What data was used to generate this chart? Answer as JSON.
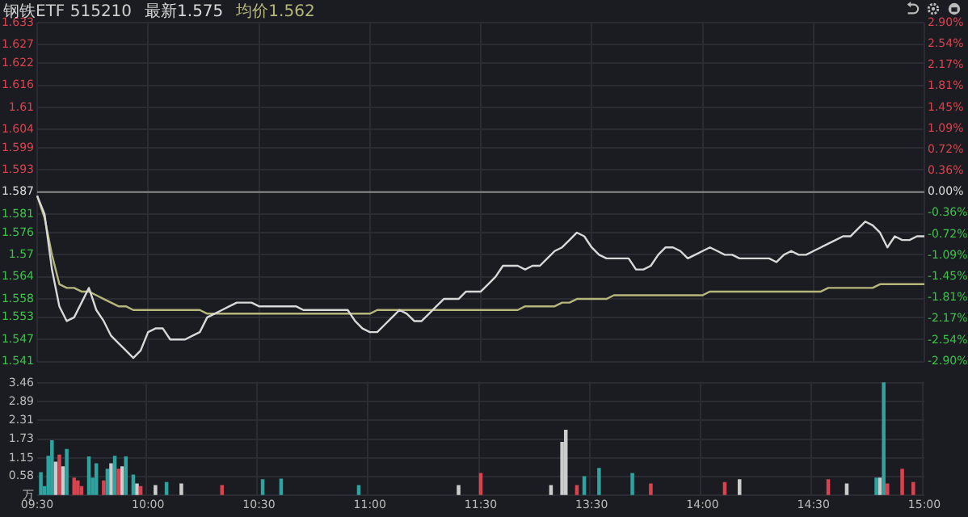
{
  "chart_data": [
    {
      "type": "line",
      "title": "钢铁ETF 515210",
      "legend": "top left",
      "grid": true,
      "tick_labels": "y",
      "categories": [
        null,
        null,
        null,
        null,
        null,
        null,
        null,
        null,
        null,
        null,
        null,
        null,
        null,
        null,
        null,
        null,
        null,
        null,
        null,
        null,
        null,
        null,
        null,
        null,
        null,
        null,
        null,
        null,
        null,
        null,
        null,
        null,
        null,
        null,
        null,
        null,
        null,
        null,
        null,
        null,
        null,
        null,
        null,
        null,
        null,
        null,
        null,
        null,
        null,
        null,
        null,
        null,
        null,
        null,
        null,
        null,
        null,
        null,
        null,
        null,
        null,
        null,
        null,
        null,
        null,
        null,
        null,
        null,
        null,
        null,
        null,
        null,
        null,
        null,
        null,
        null,
        null,
        null,
        null,
        null,
        null,
        null,
        null,
        null,
        null,
        null,
        null,
        null,
        null,
        null,
        null,
        null,
        null,
        null,
        null,
        null,
        null,
        null,
        null,
        null,
        null,
        null,
        null,
        null,
        null,
        null,
        null,
        null,
        null,
        null,
        null,
        null,
        null,
        null,
        null,
        null,
        null,
        null,
        null,
        null,
        null
      ],
      "series": [
        {
          "name": "最新1.575",
          "color": "#d8d8d8",
          "values": [
            1.586,
            1.581,
            1.566,
            1.556,
            1.552,
            1.553,
            1.557,
            1.561,
            1.555,
            1.552,
            1.548,
            1.546,
            1.544,
            1.542,
            1.544,
            1.549,
            1.55,
            1.55,
            1.547,
            1.547,
            1.547,
            1.548,
            1.549,
            1.553,
            1.554,
            1.555,
            1.556,
            1.557,
            1.557,
            1.557,
            1.556,
            1.556,
            1.556,
            1.556,
            1.556,
            1.556,
            1.555,
            1.555,
            1.555,
            1.555,
            1.555,
            1.555,
            1.555,
            1.552,
            1.55,
            1.549,
            1.549,
            1.551,
            1.553,
            1.555,
            1.554,
            1.552,
            1.552,
            1.554,
            1.556,
            1.558,
            1.558,
            1.558,
            1.56,
            1.56,
            1.56,
            1.562,
            1.564,
            1.567,
            1.567,
            1.567,
            1.566,
            1.567,
            1.567,
            1.569,
            1.571,
            1.572,
            1.574,
            1.576,
            1.575,
            1.572,
            1.57,
            1.569,
            1.569,
            1.569,
            1.569,
            1.566,
            1.566,
            1.567,
            1.57,
            1.572,
            1.572,
            1.571,
            1.569,
            1.57,
            1.571,
            1.572,
            1.571,
            1.57,
            1.57,
            1.569,
            1.569,
            1.569,
            1.569,
            1.569,
            1.568,
            1.57,
            1.571,
            1.57,
            1.57,
            1.571,
            1.572,
            1.573,
            1.574,
            1.575,
            1.575,
            1.577,
            1.579,
            1.578,
            1.576,
            1.572,
            1.575,
            1.574,
            1.574,
            1.575,
            1.575
          ]
        },
        {
          "name": "均价1.562",
          "color": "#b5b67a",
          "values": [
            1.586,
            1.58,
            1.57,
            1.562,
            1.561,
            1.561,
            1.56,
            1.56,
            1.559,
            1.558,
            1.557,
            1.556,
            1.556,
            1.555,
            1.555,
            1.555,
            1.555,
            1.555,
            1.555,
            1.555,
            1.555,
            1.555,
            1.555,
            1.554,
            1.554,
            1.554,
            1.554,
            1.554,
            1.554,
            1.554,
            1.554,
            1.554,
            1.554,
            1.554,
            1.554,
            1.554,
            1.554,
            1.554,
            1.554,
            1.554,
            1.554,
            1.554,
            1.554,
            1.554,
            1.554,
            1.554,
            1.555,
            1.555,
            1.555,
            1.555,
            1.555,
            1.555,
            1.555,
            1.555,
            1.555,
            1.555,
            1.555,
            1.555,
            1.555,
            1.555,
            1.555,
            1.555,
            1.555,
            1.555,
            1.555,
            1.555,
            1.556,
            1.556,
            1.556,
            1.556,
            1.556,
            1.557,
            1.557,
            1.558,
            1.558,
            1.558,
            1.558,
            1.558,
            1.559,
            1.559,
            1.559,
            1.559,
            1.559,
            1.559,
            1.559,
            1.559,
            1.559,
            1.559,
            1.559,
            1.559,
            1.559,
            1.56,
            1.56,
            1.56,
            1.56,
            1.56,
            1.56,
            1.56,
            1.56,
            1.56,
            1.56,
            1.56,
            1.56,
            1.56,
            1.56,
            1.56,
            1.56,
            1.561,
            1.561,
            1.561,
            1.561,
            1.561,
            1.561,
            1.561,
            1.562,
            1.562,
            1.562,
            1.562,
            1.562,
            1.562,
            1.562
          ]
        }
      ],
      "ylim": [
        1.541,
        1.633
      ],
      "yticks": [
        1.541,
        1.547,
        1.553,
        1.558,
        1.564,
        1.57,
        1.576,
        1.581,
        1.587,
        1.593,
        1.599,
        1.604,
        1.61,
        1.616,
        1.622,
        1.627,
        1.633
      ],
      "y2lim": [
        -2.9,
        2.9
      ],
      "y2ticks": [
        {
          "value": -2.9,
          "label": "-2.90%"
        },
        {
          "value": -2.54,
          "label": "-2.54%"
        },
        {
          "value": -2.17,
          "label": "-2.17%"
        },
        {
          "value": -1.81,
          "label": "-1.81%"
        },
        {
          "value": -1.45,
          "label": "-1.45%"
        },
        {
          "value": -1.09,
          "label": "-1.09%"
        },
        {
          "value": -0.72,
          "label": "-0.72%"
        },
        {
          "value": -0.36,
          "label": "-0.36%"
        },
        {
          "value": 0,
          "label": "0.00%"
        },
        {
          "value": 0.36,
          "label": "0.36%"
        },
        {
          "value": 0.72,
          "label": "0.72%"
        },
        {
          "value": 1.09,
          "label": "1.09%"
        },
        {
          "value": 1.45,
          "label": "1.45%"
        },
        {
          "value": 1.81,
          "label": "1.81%"
        },
        {
          "value": 2.17,
          "label": "2.17%"
        },
        {
          "value": 2.54,
          "label": "2.54%"
        },
        {
          "value": 2.9,
          "label": "2.90%"
        }
      ],
      "ref_lines": [
        {
          "axis": "y",
          "value": 1.587,
          "color": "#8a8a8a"
        }
      ]
    },
    {
      "type": "bar",
      "grid": true,
      "categories": [
        "09:30",
        null,
        null,
        null,
        null,
        null,
        null,
        null,
        null,
        null,
        null,
        null,
        null,
        null,
        null,
        null,
        null,
        null,
        null,
        null,
        null,
        null,
        null,
        null,
        null,
        null,
        null,
        null,
        null,
        null,
        "10:00",
        null,
        null,
        null,
        null,
        null,
        null,
        null,
        null,
        null,
        null,
        null,
        null,
        null,
        null,
        null,
        null,
        null,
        null,
        null,
        null,
        null,
        null,
        null,
        null,
        null,
        null,
        null,
        null,
        null,
        "10:30",
        null,
        null,
        null,
        null,
        null,
        null,
        null,
        null,
        null,
        null,
        null,
        null,
        null,
        null,
        null,
        null,
        null,
        null,
        null,
        null,
        null,
        null,
        null,
        null,
        null,
        null,
        null,
        null,
        null,
        "11:00",
        null,
        null,
        null,
        null,
        null,
        null,
        null,
        null,
        null,
        null,
        null,
        null,
        null,
        null,
        null,
        null,
        null,
        null,
        null,
        null,
        null,
        null,
        null,
        null,
        null,
        null,
        null,
        null,
        null,
        "11:30",
        null,
        null,
        null,
        null,
        null,
        null,
        null,
        null,
        null,
        null,
        null,
        null,
        null,
        null,
        null,
        null,
        null,
        null,
        null,
        null,
        null,
        null,
        null,
        null,
        null,
        null,
        null,
        null,
        null,
        "13:30",
        null,
        null,
        null,
        null,
        null,
        null,
        null,
        null,
        null,
        null,
        null,
        null,
        null,
        null,
        null,
        null,
        null,
        null,
        null,
        null,
        null,
        null,
        null,
        null,
        null,
        null,
        null,
        null,
        null,
        "14:00",
        null,
        null,
        null,
        null,
        null,
        null,
        null,
        null,
        null,
        null,
        null,
        null,
        null,
        null,
        null,
        null,
        null,
        null,
        null,
        null,
        null,
        null,
        null,
        null,
        null,
        null,
        null,
        null,
        null,
        "14:30",
        null,
        null,
        null,
        null,
        null,
        null,
        null,
        null,
        null,
        null,
        null,
        null,
        null,
        null,
        null,
        null,
        null,
        null,
        null,
        null,
        null,
        null,
        null,
        null,
        null,
        null,
        null,
        null,
        null,
        "15:00"
      ],
      "values": [
        null,
        0.7,
        0.27,
        1.2,
        1.68,
        1.02,
        1.24,
        0.88,
        1.41,
        null,
        0.53,
        0.44,
        0.27,
        null,
        1.18,
        0.53,
        0.97,
        null,
        0.44,
        0.8,
        0.97,
        1.2,
        0.8,
        0.88,
        1.18,
        null,
        0.62,
        0.35,
        0.27,
        null,
        null,
        null,
        0.3,
        null,
        null,
        0.39,
        null,
        null,
        null,
        0.35,
        null,
        null,
        null,
        null,
        null,
        null,
        null,
        null,
        null,
        null,
        0.3,
        null,
        null,
        null,
        null,
        null,
        null,
        null,
        null,
        null,
        null,
        0.48,
        null,
        null,
        null,
        null,
        0.5,
        null,
        null,
        null,
        null,
        null,
        null,
        null,
        null,
        null,
        null,
        null,
        null,
        null,
        null,
        null,
        null,
        null,
        null,
        null,
        null,
        0.3,
        null,
        null,
        null,
        null,
        null,
        null,
        null,
        null,
        null,
        null,
        null,
        null,
        null,
        null,
        null,
        null,
        null,
        null,
        null,
        null,
        null,
        null,
        null,
        null,
        null,
        null,
        0.3,
        null,
        null,
        null,
        null,
        null,
        0.67,
        null,
        null,
        null,
        null,
        null,
        null,
        null,
        null,
        null,
        null,
        null,
        null,
        null,
        null,
        null,
        null,
        null,
        null,
        0.3,
        null,
        null,
        1.63,
        2.0,
        null,
        null,
        0.3,
        null,
        0.57,
        null,
        null,
        null,
        0.83,
        null,
        null,
        null,
        null,
        null,
        null,
        null,
        null,
        0.67,
        null,
        null,
        null,
        null,
        0.35,
        null,
        null,
        null,
        null,
        null,
        null,
        null,
        null,
        null,
        null,
        null,
        null,
        null,
        null,
        null,
        null,
        null,
        null,
        null,
        0.39,
        null,
        null,
        null,
        0.48,
        null,
        null,
        null,
        null,
        null,
        null,
        null,
        null,
        null,
        null,
        null,
        null,
        null,
        null,
        null,
        null,
        null,
        null,
        null,
        null,
        null,
        null,
        null,
        0.48,
        null,
        null,
        null,
        null,
        0.35,
        null,
        null,
        null,
        null,
        null,
        null,
        null,
        0.53,
        0.53,
        3.46,
        0.35,
        null,
        null,
        null,
        0.8,
        null,
        null,
        0.39,
        null,
        null,
        null
      ],
      "colors": [
        null,
        "#2fa3a0",
        "#2fa3a0",
        "#2fa3a0",
        "#2fa3a0",
        "#cccccc",
        "#d9434f",
        "#cccccc",
        "#2fa3a0",
        null,
        "#d9434f",
        "#d9434f",
        "#d9434f",
        null,
        "#2fa3a0",
        "#2fa3a0",
        "#2fa3a0",
        null,
        "#d9434f",
        "#2fa3a0",
        "#cccccc",
        "#2fa3a0",
        "#d9434f",
        "#cccccc",
        "#2fa3a0",
        null,
        "#2fa3a0",
        "#cccccc",
        "#d9434f",
        null,
        null,
        null,
        "#cccccc",
        null,
        null,
        "#2fa3a0",
        null,
        null,
        null,
        "#cccccc",
        null,
        null,
        null,
        null,
        null,
        null,
        null,
        null,
        null,
        null,
        "#d9434f",
        null,
        null,
        null,
        null,
        null,
        null,
        null,
        null,
        null,
        null,
        "#2fa3a0",
        null,
        null,
        null,
        null,
        "#2fa3a0",
        null,
        null,
        null,
        null,
        null,
        null,
        null,
        null,
        null,
        null,
        null,
        null,
        null,
        null,
        null,
        null,
        null,
        null,
        null,
        null,
        "#2fa3a0",
        null,
        null,
        null,
        null,
        null,
        null,
        null,
        null,
        null,
        null,
        null,
        null,
        null,
        null,
        null,
        null,
        null,
        null,
        null,
        null,
        null,
        null,
        null,
        null,
        null,
        null,
        "#cccccc",
        null,
        null,
        null,
        null,
        null,
        "#d9434f",
        null,
        null,
        null,
        null,
        null,
        null,
        null,
        null,
        null,
        null,
        null,
        null,
        null,
        null,
        null,
        null,
        null,
        null,
        "#cccccc",
        null,
        null,
        "#cccccc",
        "#cccccc",
        null,
        null,
        "#d9434f",
        null,
        "#2fa3a0",
        null,
        null,
        null,
        "#2fa3a0",
        null,
        null,
        null,
        null,
        null,
        null,
        null,
        null,
        "#2fa3a0",
        null,
        null,
        null,
        null,
        "#d9434f",
        null,
        null,
        null,
        null,
        null,
        null,
        null,
        null,
        null,
        null,
        null,
        null,
        null,
        null,
        null,
        null,
        null,
        null,
        null,
        "#d9434f",
        null,
        null,
        null,
        "#cccccc",
        null,
        null,
        null,
        null,
        null,
        null,
        null,
        null,
        null,
        null,
        null,
        null,
        null,
        null,
        null,
        null,
        null,
        null,
        null,
        null,
        null,
        null,
        null,
        "#d9434f",
        null,
        null,
        null,
        null,
        "#cccccc",
        null,
        null,
        null,
        null,
        null,
        null,
        null,
        "#2fa3a0",
        "#cccccc",
        "#2fa3a0",
        "#d9434f",
        null,
        null,
        null,
        "#d9434f",
        null,
        null,
        "#d9434f",
        null,
        null,
        null
      ],
      "ylim": [
        0,
        3.5
      ],
      "yticks": [
        {
          "value": 0,
          "label": "万"
        },
        0.58,
        1.15,
        1.73,
        2.31,
        2.89,
        3.46
      ]
    }
  ]
}
